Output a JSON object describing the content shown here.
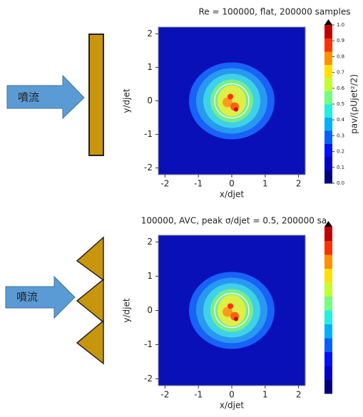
{
  "chart_data": [
    {
      "type": "heatmap",
      "title": "Re = 100000, flat, 200000 samples",
      "x_label": "x/djet",
      "y_label": "y/djet",
      "xlim": [
        -2.2,
        2.2
      ],
      "ylim": [
        -2.2,
        2.2
      ],
      "xticks": [
        -2,
        -1,
        0,
        1,
        2
      ],
      "yticks": [
        -2,
        -1,
        0,
        1,
        2
      ],
      "colorbar": {
        "label": "pav/(ρUjet²/2)",
        "lim": [
          0,
          1
        ],
        "ticks": [
          {
            "value": 0,
            "label": "0.0"
          },
          0.1,
          0.2,
          0.3,
          0.4,
          0.5,
          0.6,
          0.7,
          0.8,
          0.9,
          {
            "value": 1,
            "label": "1.0"
          }
        ]
      }
    },
    {
      "type": "heatmap",
      "title": "100000, AVC, peak σ/djet = 0.5, 200000 sa",
      "x_label": "x/djet",
      "y_label": "y/djet",
      "xlim": [
        -2.2,
        2.2
      ],
      "ylim": [
        -2.2,
        2.2
      ],
      "xticks": [
        -2,
        -1,
        0,
        1,
        2
      ],
      "yticks": [
        -2,
        -1,
        0,
        1,
        2
      ],
      "colorbar": {
        "lim": [
          0,
          1
        ]
      }
    }
  ],
  "diagrams": [
    {
      "label": "噴流"
    },
    {
      "label": "噴流"
    }
  ]
}
